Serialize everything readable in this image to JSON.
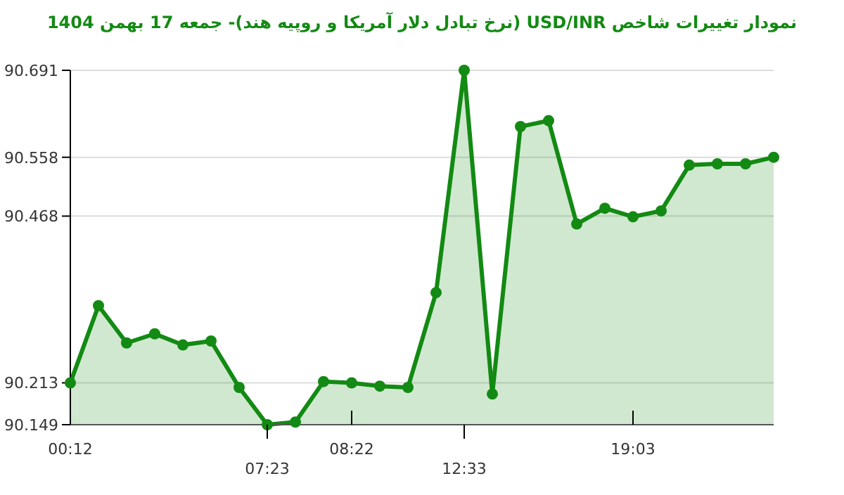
{
  "chart_data": {
    "type": "area",
    "title": "نمودار تغییرات شاخص USD/INR (نرخ تبادل دلار آمریکا و روپیه هند)- جمعه  17 بهمن 1404",
    "categories": [
      "00:12",
      null,
      null,
      null,
      null,
      null,
      null,
      "07:23",
      null,
      null,
      "08:22",
      null,
      null,
      null,
      "12:33",
      null,
      null,
      null,
      null,
      null,
      "19:03",
      null,
      null,
      null,
      null,
      null
    ],
    "values": [
      90.213,
      90.331,
      90.274,
      90.288,
      90.271,
      90.277,
      90.206,
      90.149,
      90.153,
      90.215,
      90.213,
      90.208,
      90.206,
      90.351,
      90.691,
      90.196,
      90.605,
      90.614,
      90.456,
      90.48,
      90.467,
      90.476,
      90.546,
      90.548,
      90.548,
      90.558
    ],
    "color": "#138a13",
    "ylim": [
      90.149,
      90.691
    ],
    "yticks": [
      90.149,
      90.213,
      90.468,
      90.558,
      90.691
    ],
    "grid": "y",
    "marker": "circle"
  }
}
